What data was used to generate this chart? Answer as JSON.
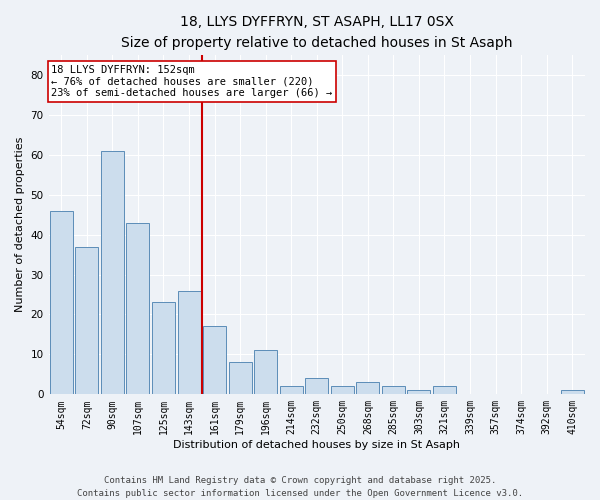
{
  "title": "18, LLYS DYFFRYN, ST ASAPH, LL17 0SX",
  "subtitle": "Size of property relative to detached houses in St Asaph",
  "xlabel": "Distribution of detached houses by size in St Asaph",
  "ylabel": "Number of detached properties",
  "footer_line1": "Contains HM Land Registry data © Crown copyright and database right 2025.",
  "footer_line2": "Contains public sector information licensed under the Open Government Licence v3.0.",
  "bins": [
    "54sqm",
    "72sqm",
    "90sqm",
    "107sqm",
    "125sqm",
    "143sqm",
    "161sqm",
    "179sqm",
    "196sqm",
    "214sqm",
    "232sqm",
    "250sqm",
    "268sqm",
    "285sqm",
    "303sqm",
    "321sqm",
    "339sqm",
    "357sqm",
    "374sqm",
    "392sqm",
    "410sqm"
  ],
  "values": [
    46,
    37,
    61,
    43,
    23,
    26,
    17,
    8,
    11,
    2,
    4,
    2,
    3,
    2,
    1,
    2,
    0,
    0,
    0,
    0,
    1
  ],
  "bar_color": "#ccdded",
  "bar_edge_color": "#5b8db8",
  "ylim": [
    0,
    85
  ],
  "yticks": [
    0,
    10,
    20,
    30,
    40,
    50,
    60,
    70,
    80
  ],
  "property_bin_index": 5,
  "annotation_text": "18 LLYS DYFFRYN: 152sqm\n← 76% of detached houses are smaller (220)\n23% of semi-detached houses are larger (66) →",
  "annotation_box_color": "#ffffff",
  "annotation_box_edge": "#cc0000",
  "vline_color": "#cc0000",
  "background_color": "#eef2f7",
  "grid_color": "#ffffff",
  "title_fontsize": 10,
  "subtitle_fontsize": 9,
  "axis_label_fontsize": 8,
  "tick_fontsize": 7,
  "footer_fontsize": 6.5,
  "annotation_fontsize": 7.5
}
